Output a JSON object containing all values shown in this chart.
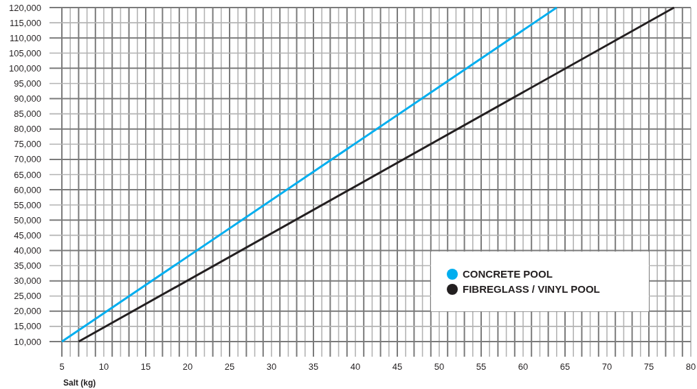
{
  "chart_data": {
    "type": "line",
    "xlabel": "Salt (kg)",
    "series": [
      {
        "name": "CONCRETE POOL",
        "color": "#00aeef",
        "x": [
          5,
          64
        ],
        "values": [
          10000,
          120000
        ]
      },
      {
        "name": "FIBREGLASS / VINYL POOL",
        "color": "#231f20",
        "x": [
          7,
          78
        ],
        "values": [
          10000,
          120000
        ]
      }
    ],
    "xlim": [
      5,
      80
    ],
    "ylim": [
      10000,
      120000
    ],
    "xticks": [
      5,
      {
        "value": 6,
        "label": null
      },
      {
        "value": 7,
        "label": null
      },
      {
        "value": 8,
        "label": null
      },
      {
        "value": 9,
        "label": null
      },
      10,
      {
        "value": 11,
        "label": null
      },
      {
        "value": 12,
        "label": null
      },
      {
        "value": 13,
        "label": null
      },
      {
        "value": 14,
        "label": null
      },
      15,
      {
        "value": 16,
        "label": null
      },
      {
        "value": 17,
        "label": null
      },
      {
        "value": 18,
        "label": null
      },
      {
        "value": 19,
        "label": null
      },
      20,
      {
        "value": 21,
        "label": null
      },
      {
        "value": 22,
        "label": null
      },
      {
        "value": 23,
        "label": null
      },
      {
        "value": 24,
        "label": null
      },
      25,
      {
        "value": 26,
        "label": null
      },
      {
        "value": 27,
        "label": null
      },
      {
        "value": 28,
        "label": null
      },
      {
        "value": 29,
        "label": null
      },
      30,
      {
        "value": 31,
        "label": null
      },
      {
        "value": 32,
        "label": null
      },
      {
        "value": 33,
        "label": null
      },
      {
        "value": 34,
        "label": null
      },
      35,
      {
        "value": 36,
        "label": null
      },
      {
        "value": 37,
        "label": null
      },
      {
        "value": 38,
        "label": null
      },
      {
        "value": 39,
        "label": null
      },
      40,
      {
        "value": 41,
        "label": null
      },
      {
        "value": 42,
        "label": null
      },
      {
        "value": 43,
        "label": null
      },
      {
        "value": 44,
        "label": null
      },
      45,
      {
        "value": 46,
        "label": null
      },
      {
        "value": 47,
        "label": null
      },
      {
        "value": 48,
        "label": null
      },
      {
        "value": 49,
        "label": null
      },
      50,
      {
        "value": 51,
        "label": null
      },
      {
        "value": 52,
        "label": null
      },
      {
        "value": 53,
        "label": null
      },
      {
        "value": 54,
        "label": null
      },
      55,
      {
        "value": 56,
        "label": null
      },
      {
        "value": 57,
        "label": null
      },
      {
        "value": 58,
        "label": null
      },
      {
        "value": 59,
        "label": null
      },
      60,
      {
        "value": 61,
        "label": null
      },
      {
        "value": 62,
        "label": null
      },
      {
        "value": 63,
        "label": null
      },
      {
        "value": 64,
        "label": null
      },
      65,
      {
        "value": 66,
        "label": null
      },
      {
        "value": 67,
        "label": null
      },
      {
        "value": 68,
        "label": null
      },
      {
        "value": 69,
        "label": null
      },
      70,
      {
        "value": 71,
        "label": null
      },
      {
        "value": 72,
        "label": null
      },
      {
        "value": 73,
        "label": null
      },
      {
        "value": 74,
        "label": null
      },
      75,
      {
        "value": 76,
        "label": null
      },
      {
        "value": 77,
        "label": null
      },
      {
        "value": 78,
        "label": null
      },
      {
        "value": 79,
        "label": null
      },
      80
    ],
    "yticks": [
      {
        "value": 10000,
        "label": "10,000"
      },
      {
        "value": 15000,
        "label": "15,000"
      },
      {
        "value": 20000,
        "label": "20,000"
      },
      {
        "value": 25000,
        "label": "25,000"
      },
      {
        "value": 30000,
        "label": "30,000"
      },
      {
        "value": 35000,
        "label": "35,000"
      },
      {
        "value": 40000,
        "label": "40,000"
      },
      {
        "value": 45000,
        "label": "45,000"
      },
      {
        "value": 50000,
        "label": "50,000"
      },
      {
        "value": 55000,
        "label": "55,000"
      },
      {
        "value": 60000,
        "label": "60,000"
      },
      {
        "value": 65000,
        "label": "65,000"
      },
      {
        "value": 70000,
        "label": "70,000"
      },
      {
        "value": 75000,
        "label": "75,000"
      },
      {
        "value": 80000,
        "label": "80,000"
      },
      {
        "value": 85000,
        "label": "85,000"
      },
      {
        "value": 90000,
        "label": "90,000"
      },
      {
        "value": 95000,
        "label": "95,000"
      },
      {
        "value": 100000,
        "label": "100,000"
      },
      {
        "value": 105000,
        "label": "105,000"
      },
      {
        "value": 110000,
        "label": "110,000"
      },
      {
        "value": 115000,
        "label": "115,000"
      },
      {
        "value": 120000,
        "label": "120,000"
      }
    ],
    "grid": true,
    "legend": "bottom right",
    "marker": "none",
    "line_style": "solid"
  }
}
